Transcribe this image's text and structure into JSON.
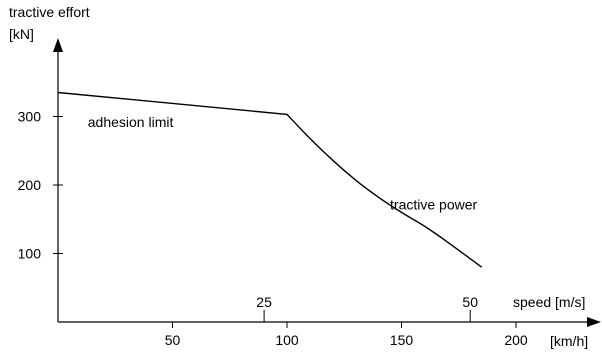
{
  "chart_data": {
    "type": "line",
    "ylabel_line1": "tractive effort",
    "ylabel_line2": "[kN]",
    "x_unit": "[km/h]",
    "x2_label": "speed [m/s]",
    "x_ticks": [
      50,
      100,
      150,
      200
    ],
    "x2_ticks": [
      25,
      50
    ],
    "y_ticks": [
      100,
      200,
      300
    ],
    "xlim": [
      0,
      230
    ],
    "ylim": [
      0,
      370
    ],
    "series": [
      {
        "x": [
          0,
          100,
          110,
          120,
          130,
          140,
          150,
          160,
          170,
          185
        ],
        "y": [
          335,
          303,
          268,
          236,
          207,
          182,
          160,
          140,
          117,
          80
        ]
      }
    ],
    "annotations": [
      {
        "text": "adhesion limit",
        "x": 13,
        "y": 285
      },
      {
        "text": "tractive power",
        "x": 145,
        "y": 164
      }
    ]
  }
}
